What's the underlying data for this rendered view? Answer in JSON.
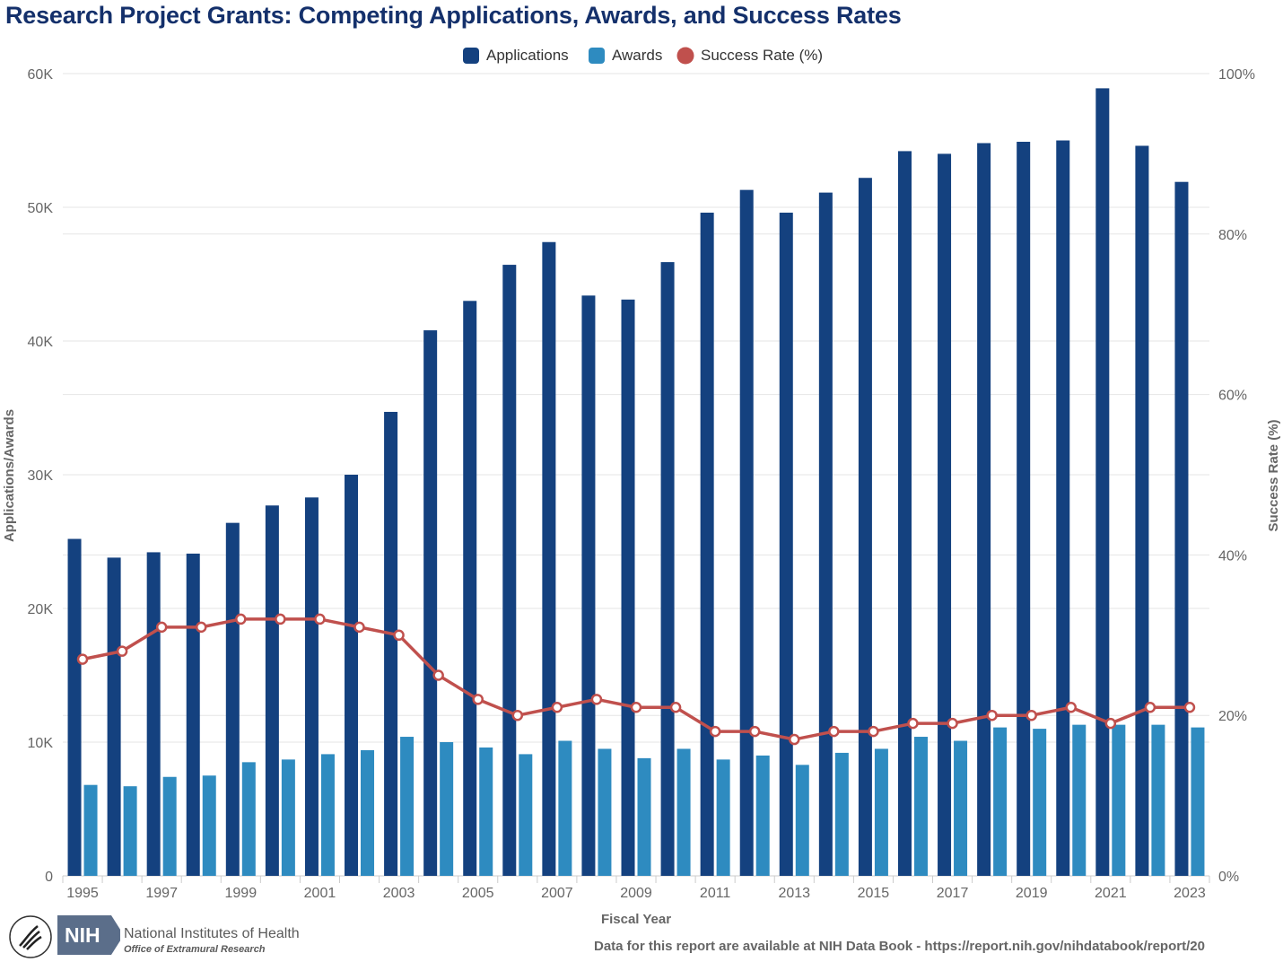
{
  "chart_data": {
    "type": "bar",
    "title": "Research Project Grants: Competing Applications, Awards, and Success Rates",
    "xlabel": "Fiscal Year",
    "ylabel": "Applications/Awards",
    "y2label": "Success Rate (%)",
    "ylim": [
      0,
      60000
    ],
    "y2lim": [
      0,
      100
    ],
    "y_ticks": [
      "0",
      "10K",
      "20K",
      "30K",
      "40K",
      "50K",
      "60K"
    ],
    "y2_ticks": [
      "0%",
      "20%",
      "40%",
      "60%",
      "80%",
      "100%"
    ],
    "categories": [
      "1995",
      "1996",
      "1997",
      "1998",
      "1999",
      "2000",
      "2001",
      "2002",
      "2003",
      "2004",
      "2005",
      "2006",
      "2007",
      "2008",
      "2009",
      "2010",
      "2011",
      "2012",
      "2013",
      "2014",
      "2015",
      "2016",
      "2017",
      "2018",
      "2019",
      "2020",
      "2021",
      "2022",
      "2023"
    ],
    "x_tick_labels": [
      "1995",
      "1997",
      "1999",
      "2001",
      "2003",
      "2005",
      "2007",
      "2009",
      "2011",
      "2013",
      "2015",
      "2017",
      "2019",
      "2021",
      "2023"
    ],
    "legend_position": "top-center",
    "grid": true,
    "series": [
      {
        "name": "Applications",
        "kind": "bar",
        "axis": "left",
        "color": "#14417f",
        "values": [
          25200,
          23800,
          24200,
          24100,
          26400,
          27700,
          28300,
          30000,
          34700,
          40800,
          43000,
          45700,
          47400,
          43400,
          43100,
          45900,
          49600,
          51300,
          49600,
          51100,
          52200,
          54200,
          54000,
          54800,
          54900,
          55000,
          58900,
          54600,
          51900
        ]
      },
      {
        "name": "Awards",
        "kind": "bar",
        "axis": "left",
        "color": "#2e8bc0",
        "values": [
          6800,
          6700,
          7400,
          7500,
          8500,
          8700,
          9100,
          9400,
          10400,
          10000,
          9600,
          9100,
          10100,
          9500,
          8800,
          9500,
          8700,
          9000,
          8300,
          9200,
          9500,
          10400,
          10100,
          11100,
          11000,
          11300,
          11300,
          11300,
          11100
        ]
      },
      {
        "name": "Success Rate (%)",
        "kind": "line",
        "axis": "right",
        "color": "#c0504d",
        "values": [
          27,
          28,
          31,
          31,
          32,
          32,
          32,
          31,
          30,
          25,
          22,
          20,
          21,
          22,
          21,
          21,
          18,
          18,
          17,
          18,
          18,
          19,
          19,
          20,
          20,
          21,
          19,
          21,
          21
        ]
      }
    ]
  },
  "footer": {
    "source_note": "Data for this report are available at NIH Data Book - https://report.nih.gov/nihdatabook/report/20",
    "logo_text": "NIH",
    "org_name": "National Institutes of Health",
    "org_sub": "Office of Extramural Research"
  }
}
